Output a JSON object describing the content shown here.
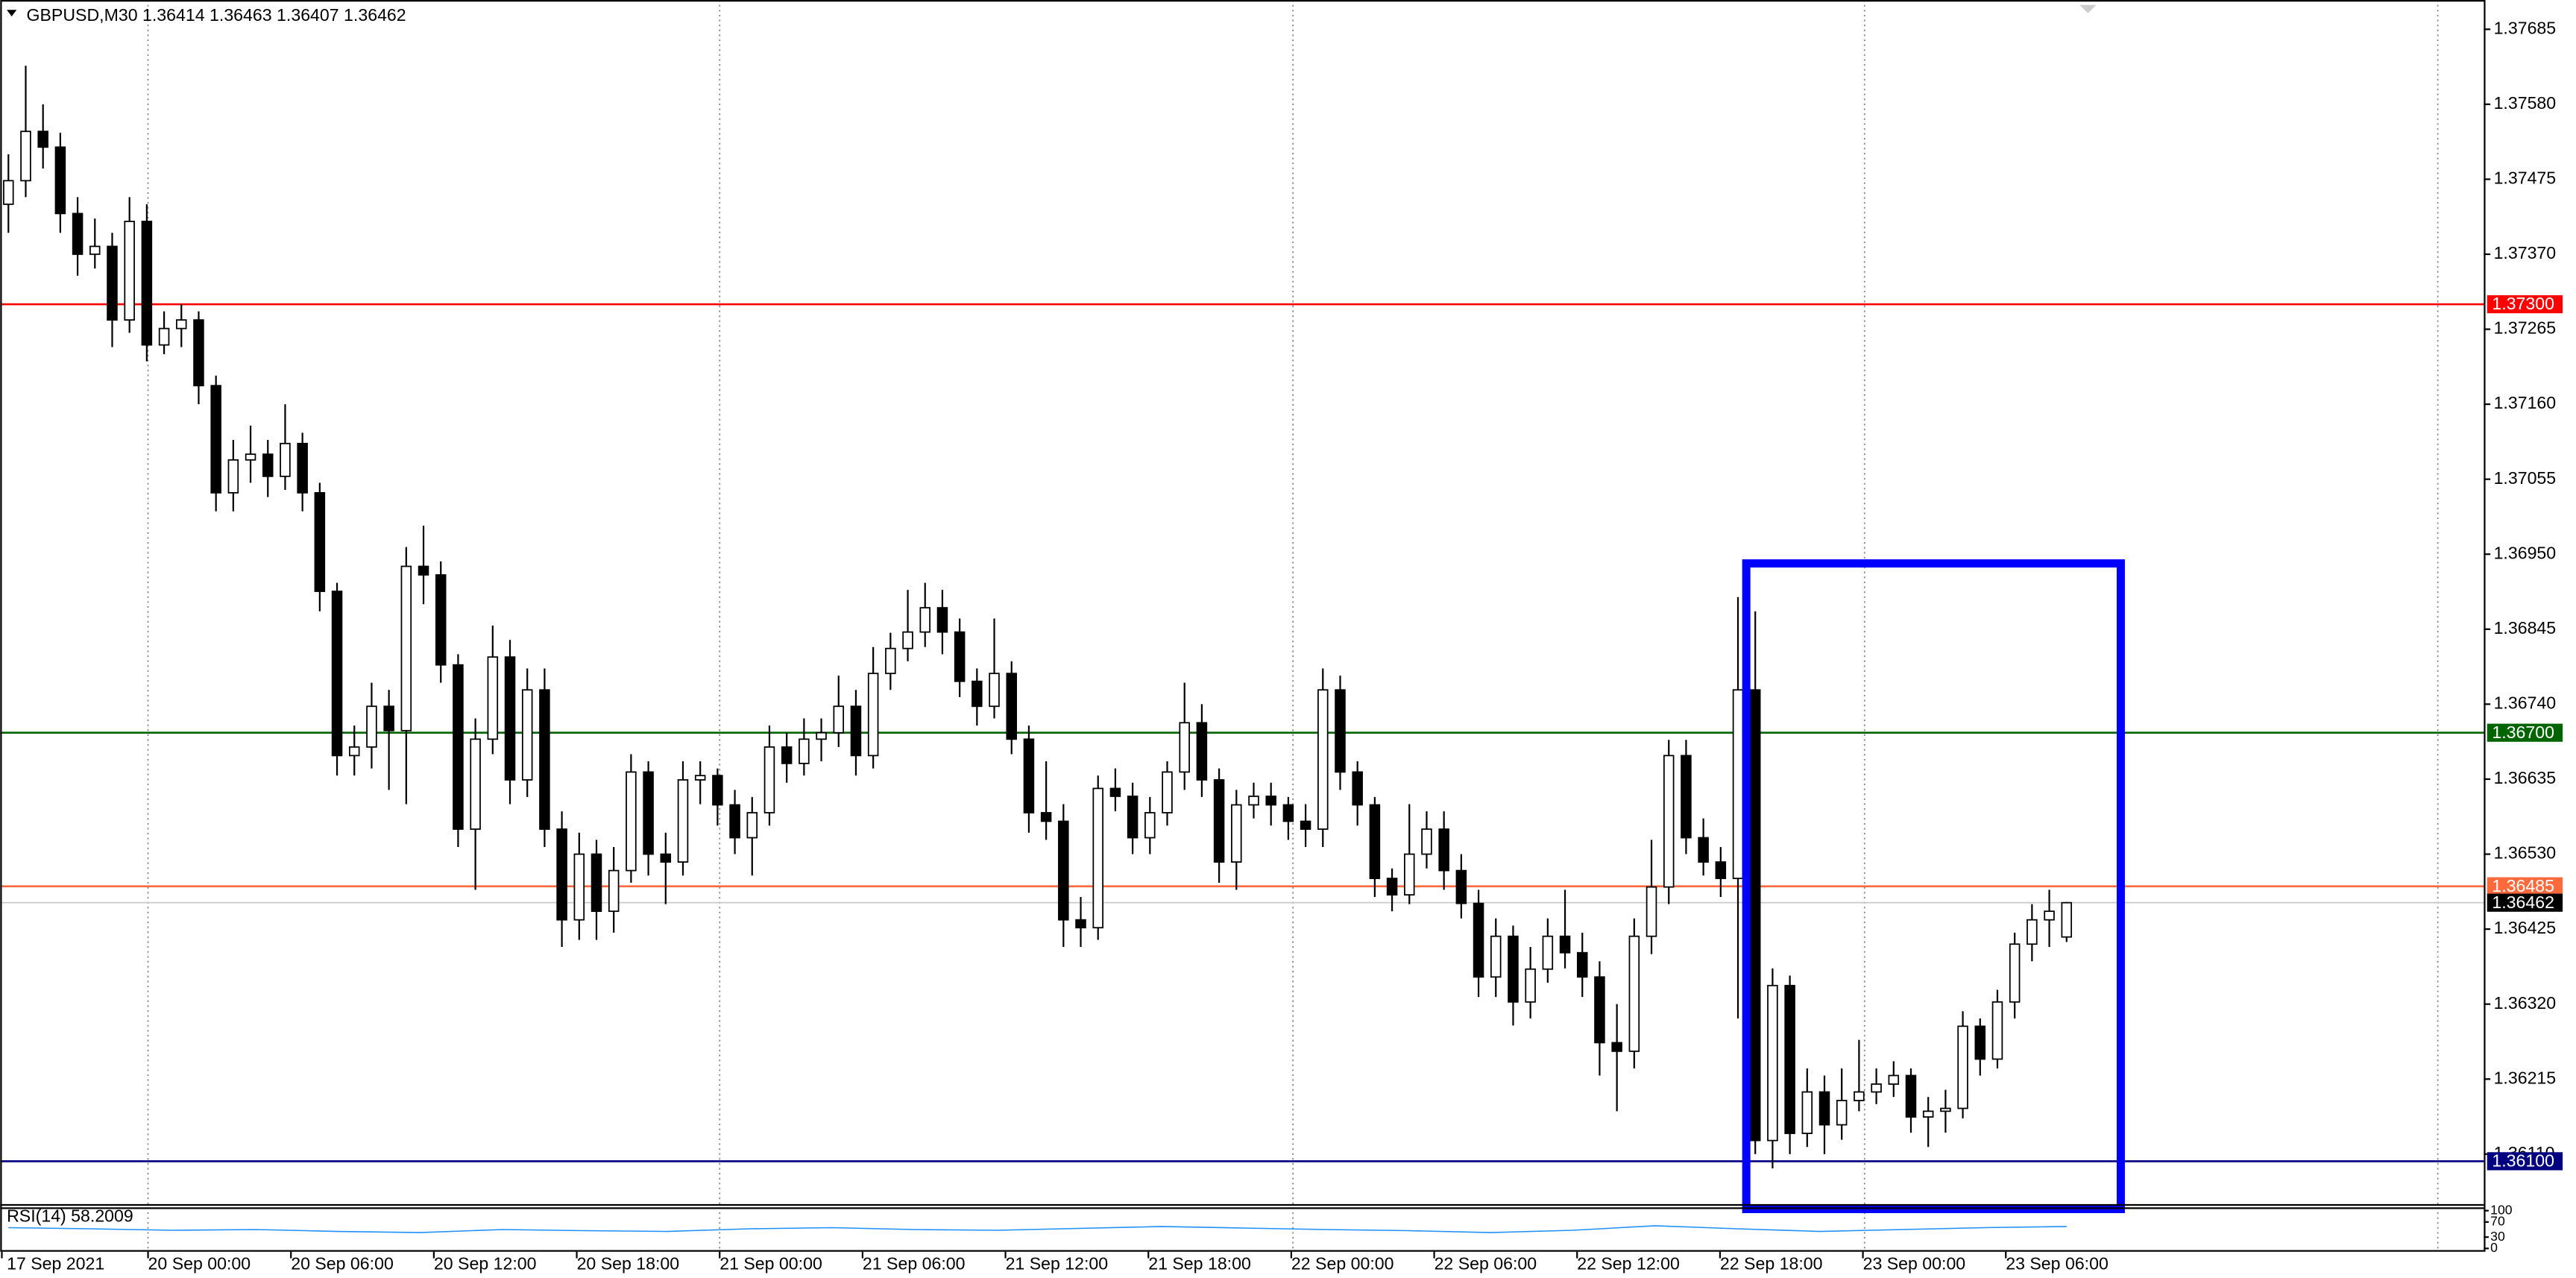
{
  "chart_data": {
    "type": "candlestick",
    "title": "GBPUSD,M30  1.36414 1.36463 1.36407 1.36462",
    "x_labels": [
      "17 Sep 2021",
      "20 Sep 00:00",
      "20 Sep 06:00",
      "20 Sep 12:00",
      "20 Sep 18:00",
      "21 Sep 00:00",
      "21 Sep 06:00",
      "21 Sep 12:00",
      "21 Sep 18:00",
      "22 Sep 00:00",
      "22 Sep 06:00",
      "22 Sep 12:00",
      "22 Sep 18:00",
      "23 Sep 00:00",
      "23 Sep 06:00"
    ],
    "ylim": [
      1.3604,
      1.37726
    ],
    "yticks": [
      1.37685,
      {
        "value": 1.3758,
        "label": "1.37580"
      },
      1.37475,
      {
        "value": 1.3737,
        "label": "1.37370"
      },
      1.37265,
      {
        "value": 1.3716,
        "label": "1.37160"
      },
      1.37055,
      {
        "value": 1.3695,
        "label": "1.36950"
      },
      1.36845,
      {
        "value": 1.3674,
        "label": "1.36740"
      },
      1.36635,
      {
        "value": 1.3653,
        "label": "1.36530"
      },
      1.36425,
      {
        "value": 1.3632,
        "label": "1.36320"
      },
      1.36215,
      {
        "value": 1.3611,
        "label": "1.36110"
      }
    ],
    "levels": [
      {
        "value": 1.373,
        "label": "1.37300",
        "color": "#ff0000"
      },
      {
        "value": 1.367,
        "label": "1.36700",
        "color": "#006400"
      },
      {
        "value": 1.36485,
        "label": "1.36485",
        "color": "#ff6a3d"
      },
      {
        "value": 1.36462,
        "label": "1.36462",
        "color": "#000000"
      },
      {
        "value": 1.361,
        "label": "1.36100",
        "color": "#000080"
      }
    ],
    "bull_color": "#ffffff",
    "bear_color": "#000000",
    "ohlc": [
      [
        1.3744,
        1.3751,
        1.374,
        1.37473
      ],
      [
        1.37473,
        1.37634,
        1.3745,
        1.37542
      ],
      [
        1.37542,
        1.3758,
        1.3749,
        1.3752
      ],
      [
        1.3752,
        1.3754,
        1.374,
        1.37427
      ],
      [
        1.37427,
        1.3745,
        1.3734,
        1.3737
      ],
      [
        1.3737,
        1.3742,
        1.3735,
        1.37381
      ],
      [
        1.37381,
        1.374,
        1.3724,
        1.37278
      ],
      [
        1.37278,
        1.3745,
        1.3726,
        1.37416
      ],
      [
        1.37416,
        1.3744,
        1.3722,
        1.37243
      ],
      [
        1.37243,
        1.3729,
        1.3723,
        1.37266
      ],
      [
        1.37266,
        1.373,
        1.3724,
        1.37278
      ],
      [
        1.37278,
        1.3729,
        1.3716,
        1.37186
      ],
      [
        1.37186,
        1.372,
        1.3701,
        1.37036
      ],
      [
        1.37036,
        1.3711,
        1.3701,
        1.37082
      ],
      [
        1.37082,
        1.3713,
        1.3705,
        1.3709
      ],
      [
        1.3709,
        1.3711,
        1.3703,
        1.37059
      ],
      [
        1.37059,
        1.3716,
        1.3704,
        1.37105
      ],
      [
        1.37105,
        1.3712,
        1.3701,
        1.37036
      ],
      [
        1.37036,
        1.3705,
        1.3687,
        1.36898
      ],
      [
        1.36898,
        1.3691,
        1.3664,
        1.36668
      ],
      [
        1.36668,
        1.3671,
        1.3664,
        1.3668
      ],
      [
        1.3668,
        1.3677,
        1.3665,
        1.36737
      ],
      [
        1.36737,
        1.3676,
        1.3662,
        1.36703
      ],
      [
        1.36703,
        1.3696,
        1.366,
        1.36933
      ],
      [
        1.36933,
        1.3699,
        1.3688,
        1.36921
      ],
      [
        1.36921,
        1.3694,
        1.3677,
        1.36795
      ],
      [
        1.36795,
        1.3681,
        1.3654,
        1.36565
      ],
      [
        1.36565,
        1.3672,
        1.3648,
        1.36691
      ],
      [
        1.36691,
        1.3685,
        1.3667,
        1.36806
      ],
      [
        1.36806,
        1.3683,
        1.366,
        1.36634
      ],
      [
        1.36634,
        1.3679,
        1.3661,
        1.3676
      ],
      [
        1.3676,
        1.3679,
        1.3654,
        1.36565
      ],
      [
        1.36565,
        1.3659,
        1.364,
        1.36438
      ],
      [
        1.36438,
        1.3656,
        1.3641,
        1.3653
      ],
      [
        1.3653,
        1.3655,
        1.3641,
        1.3645
      ],
      [
        1.3645,
        1.3654,
        1.3642,
        1.36507
      ],
      [
        1.36507,
        1.3667,
        1.3649,
        1.36645
      ],
      [
        1.36645,
        1.3666,
        1.365,
        1.3653
      ],
      [
        1.3653,
        1.3656,
        1.3646,
        1.36519
      ],
      [
        1.36519,
        1.3666,
        1.365,
        1.36634
      ],
      [
        1.36634,
        1.3666,
        1.366,
        1.3664
      ],
      [
        1.3664,
        1.3665,
        1.3657,
        1.36599
      ],
      [
        1.36599,
        1.3662,
        1.3653,
        1.36553
      ],
      [
        1.36553,
        1.3661,
        1.365,
        1.36588
      ],
      [
        1.36588,
        1.3671,
        1.3657,
        1.3668
      ],
      [
        1.3668,
        1.367,
        1.3663,
        1.36657
      ],
      [
        1.36657,
        1.3672,
        1.3664,
        1.36691
      ],
      [
        1.36691,
        1.3672,
        1.3666,
        1.367
      ],
      [
        1.367,
        1.3678,
        1.3668,
        1.36737
      ],
      [
        1.36737,
        1.3676,
        1.3664,
        1.36668
      ],
      [
        1.36668,
        1.3682,
        1.3665,
        1.36783
      ],
      [
        1.36783,
        1.3684,
        1.3676,
        1.36818
      ],
      [
        1.36818,
        1.369,
        1.368,
        1.36841
      ],
      [
        1.36841,
        1.3691,
        1.3682,
        1.36875
      ],
      [
        1.36875,
        1.369,
        1.3681,
        1.36841
      ],
      [
        1.36841,
        1.3686,
        1.3675,
        1.36772
      ],
      [
        1.36772,
        1.3679,
        1.3671,
        1.36737
      ],
      [
        1.36737,
        1.3686,
        1.3672,
        1.36783
      ],
      [
        1.36783,
        1.368,
        1.3667,
        1.36691
      ],
      [
        1.36691,
        1.3671,
        1.3656,
        1.36588
      ],
      [
        1.36588,
        1.3666,
        1.3655,
        1.36576
      ],
      [
        1.36576,
        1.366,
        1.364,
        1.36438
      ],
      [
        1.36438,
        1.3647,
        1.364,
        1.36427
      ],
      [
        1.36427,
        1.3664,
        1.3641,
        1.36622
      ],
      [
        1.36622,
        1.3665,
        1.3659,
        1.36611
      ],
      [
        1.36611,
        1.3663,
        1.3653,
        1.36553
      ],
      [
        1.36553,
        1.3661,
        1.3653,
        1.36588
      ],
      [
        1.36588,
        1.3666,
        1.3657,
        1.36645
      ],
      [
        1.36645,
        1.3677,
        1.3662,
        1.36714
      ],
      [
        1.36714,
        1.3674,
        1.3661,
        1.36634
      ],
      [
        1.36634,
        1.3665,
        1.3649,
        1.36519
      ],
      [
        1.36519,
        1.3662,
        1.3648,
        1.36599
      ],
      [
        1.36599,
        1.3663,
        1.3658,
        1.36611
      ],
      [
        1.36611,
        1.3663,
        1.3657,
        1.36599
      ],
      [
        1.36599,
        1.3661,
        1.3655,
        1.36576
      ],
      [
        1.36576,
        1.366,
        1.3654,
        1.36565
      ],
      [
        1.36565,
        1.3679,
        1.3654,
        1.3676
      ],
      [
        1.3676,
        1.3678,
        1.3662,
        1.36645
      ],
      [
        1.36645,
        1.3666,
        1.3657,
        1.36599
      ],
      [
        1.36599,
        1.3661,
        1.3647,
        1.36496
      ],
      [
        1.36496,
        1.3651,
        1.3645,
        1.36473
      ],
      [
        1.36473,
        1.366,
        1.3646,
        1.3653
      ],
      [
        1.3653,
        1.3659,
        1.3651,
        1.36565
      ],
      [
        1.36565,
        1.3659,
        1.3648,
        1.36507
      ],
      [
        1.36507,
        1.3653,
        1.3644,
        1.36461
      ],
      [
        1.36461,
        1.3648,
        1.3633,
        1.36358
      ],
      [
        1.36358,
        1.3644,
        1.3633,
        1.36415
      ],
      [
        1.36415,
        1.3643,
        1.3629,
        1.36323
      ],
      [
        1.36323,
        1.364,
        1.363,
        1.36369
      ],
      [
        1.36369,
        1.3644,
        1.3635,
        1.36415
      ],
      [
        1.36415,
        1.3648,
        1.3637,
        1.36392
      ],
      [
        1.36392,
        1.3642,
        1.3633,
        1.36358
      ],
      [
        1.36358,
        1.3638,
        1.3622,
        1.36266
      ],
      [
        1.36266,
        1.3632,
        1.3617,
        1.36254
      ],
      [
        1.36254,
        1.3644,
        1.3623,
        1.36415
      ],
      [
        1.36415,
        1.3655,
        1.3639,
        1.36484
      ],
      [
        1.36484,
        1.3669,
        1.3646,
        1.36668
      ],
      [
        1.36668,
        1.3669,
        1.3653,
        1.36553
      ],
      [
        1.36553,
        1.3658,
        1.365,
        1.36519
      ],
      [
        1.36519,
        1.3654,
        1.3647,
        1.36496
      ],
      [
        1.36496,
        1.3689,
        1.363,
        1.3676
      ],
      [
        1.3676,
        1.3687,
        1.3611,
        1.36129
      ],
      [
        1.36129,
        1.3637,
        1.3609,
        1.36346
      ],
      [
        1.36346,
        1.3636,
        1.3611,
        1.36139
      ],
      [
        1.36139,
        1.3623,
        1.3612,
        1.36197
      ],
      [
        1.36197,
        1.3622,
        1.3611,
        1.36151
      ],
      [
        1.36151,
        1.3623,
        1.3613,
        1.36185
      ],
      [
        1.36185,
        1.3627,
        1.3617,
        1.36197
      ],
      [
        1.36197,
        1.3623,
        1.3618,
        1.36208
      ],
      [
        1.36208,
        1.3624,
        1.3619,
        1.3622
      ],
      [
        1.3622,
        1.3623,
        1.3614,
        1.36162
      ],
      [
        1.36162,
        1.3619,
        1.3612,
        1.3617
      ],
      [
        1.3617,
        1.362,
        1.3614,
        1.36174
      ],
      [
        1.36174,
        1.3631,
        1.3616,
        1.36289
      ],
      [
        1.36289,
        1.363,
        1.3622,
        1.36243
      ],
      [
        1.36243,
        1.3634,
        1.3623,
        1.36323
      ],
      [
        1.36323,
        1.3642,
        1.363,
        1.36404
      ],
      [
        1.36404,
        1.3646,
        1.3638,
        1.36438
      ],
      [
        1.36438,
        1.3648,
        1.364,
        1.3645
      ],
      [
        1.36414,
        1.36463,
        1.36407,
        1.36462
      ]
    ],
    "rsi": {
      "label": "RSI(14) 58.2009",
      "color": "#1e90ff",
      "ylim": [
        0,
        100
      ],
      "yticks": [
        100,
        70,
        30,
        0
      ],
      "values": [
        55,
        52,
        48,
        50,
        45,
        42,
        50,
        47,
        45,
        52,
        55,
        50,
        48,
        53,
        58,
        54,
        50,
        47,
        42,
        48,
        60,
        52,
        45,
        50,
        55,
        58
      ]
    }
  }
}
